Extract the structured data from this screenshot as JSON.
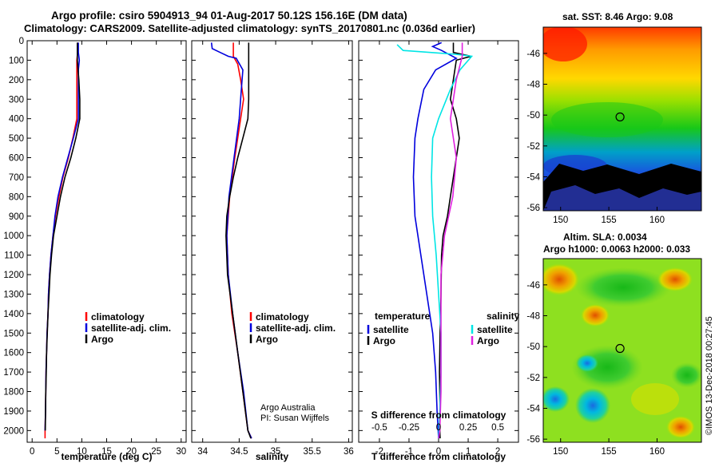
{
  "header": {
    "title_line1": "Argo profile: csiro 5904913_94 01-Aug-2017 50.12S 156.16E (DM data)",
    "title_line2": "Climatology: CARS2009. Satellite-adjusted climatology: synTS_20170801.nc (0.036d earlier)"
  },
  "map_top": {
    "title": "sat. SST: 8.46 Argo: 9.08",
    "lat_ticks": [
      "-46",
      "-48",
      "-50",
      "-52",
      "-54",
      "-56"
    ],
    "lon_ticks": [
      "150",
      "155",
      "160"
    ],
    "float_position": {
      "lon": 156.16,
      "lat": -50.12
    }
  },
  "map_bottom": {
    "title_line1": "Altim. SLA: 0.0034",
    "title_line2": "Argo h1000: 0.0063 h2000: 0.033",
    "lat_ticks": [
      "-46",
      "-48",
      "-50",
      "-52",
      "-54",
      "-56"
    ],
    "lon_ticks": [
      "150",
      "155",
      "160"
    ],
    "float_position": {
      "lon": 156.16,
      "lat": -50.12
    },
    "side_stamp": "©IMOS 13-Dec-2018 00:27:45"
  },
  "colors": {
    "climatology": "#ff0000",
    "satellite": "#0000dd",
    "argo": "#000000",
    "sat_salinity": "#00e5e5",
    "argo_salinity": "#e020e0"
  },
  "chart_data": [
    {
      "type": "line",
      "xlabel": "temperature (deg C)",
      "xlim": [
        -1,
        31
      ],
      "ylim": [
        2060,
        0
      ],
      "xticks": [
        "0",
        "5",
        "10",
        "15",
        "20",
        "25",
        "30"
      ],
      "yticks": [
        "0",
        "100",
        "200",
        "300",
        "400",
        "500",
        "600",
        "700",
        "800",
        "900",
        "1000",
        "1100",
        "1200",
        "1300",
        "1400",
        "1500",
        "1600",
        "1700",
        "1800",
        "1900",
        "2000"
      ],
      "legend": [
        "climatology",
        "satellite-adj. clim.",
        "Argo"
      ],
      "series": [
        {
          "name": "climatology",
          "color": "#ff0000",
          "points": [
            [
              9.2,
              10
            ],
            [
              9.2,
              50
            ],
            [
              9.0,
              100
            ],
            [
              9.0,
              200
            ],
            [
              9.0,
              400
            ],
            [
              8.2,
              500
            ],
            [
              7.3,
              600
            ],
            [
              6.2,
              700
            ],
            [
              5.4,
              800
            ],
            [
              4.7,
              900
            ],
            [
              4.2,
              1000
            ],
            [
              3.8,
              1100
            ],
            [
              3.5,
              1200
            ],
            [
              3.3,
              1300
            ],
            [
              3.2,
              1400
            ],
            [
              3.0,
              1500
            ],
            [
              2.9,
              1600
            ],
            [
              2.8,
              1700
            ],
            [
              2.75,
              1800
            ],
            [
              2.7,
              1900
            ],
            [
              2.6,
              2000
            ],
            [
              2.6,
              2040
            ]
          ]
        },
        {
          "name": "satellite-adj. clim.",
          "color": "#0000dd",
          "points": [
            [
              9.3,
              10
            ],
            [
              9.3,
              60
            ],
            [
              9.5,
              100
            ],
            [
              9.3,
              150
            ],
            [
              9.3,
              250
            ],
            [
              9.3,
              400
            ],
            [
              8.3,
              500
            ],
            [
              7.2,
              600
            ],
            [
              6.1,
              700
            ],
            [
              5.2,
              800
            ],
            [
              4.6,
              900
            ],
            [
              4.2,
              1000
            ],
            [
              3.8,
              1100
            ],
            [
              3.5,
              1200
            ],
            [
              3.3,
              1300
            ],
            [
              3.2,
              1400
            ],
            [
              3.0,
              1500
            ],
            [
              2.9,
              1600
            ],
            [
              2.8,
              1700
            ],
            [
              2.75,
              1800
            ],
            [
              2.7,
              1900
            ],
            [
              2.6,
              2000
            ]
          ]
        },
        {
          "name": "Argo",
          "color": "#000000",
          "points": [
            [
              9.1,
              10
            ],
            [
              9.1,
              100
            ],
            [
              9.4,
              200
            ],
            [
              9.6,
              300
            ],
            [
              9.6,
              400
            ],
            [
              8.8,
              500
            ],
            [
              7.8,
              600
            ],
            [
              6.6,
              700
            ],
            [
              5.7,
              800
            ],
            [
              5.0,
              900
            ],
            [
              4.3,
              1000
            ],
            [
              3.9,
              1100
            ],
            [
              3.6,
              1200
            ],
            [
              3.4,
              1300
            ],
            [
              3.2,
              1400
            ],
            [
              3.05,
              1500
            ],
            [
              2.9,
              1600
            ],
            [
              2.85,
              1700
            ],
            [
              2.75,
              1800
            ],
            [
              2.7,
              1900
            ],
            [
              2.65,
              2000
            ]
          ]
        }
      ]
    },
    {
      "type": "line",
      "xlabel": "salinity",
      "xlim": [
        33.85,
        36.05
      ],
      "ylim": [
        2060,
        0
      ],
      "xticks": [
        "34",
        "34.5",
        "35",
        "35.5",
        "36"
      ],
      "legend": [
        "climatology",
        "satellite-adj. clim.",
        "Argo"
      ],
      "credits": [
        "Argo Australia",
        "PI: Susan Wijffels"
      ],
      "series": [
        {
          "name": "climatology",
          "color": "#ff0000",
          "points": [
            [
              34.42,
              10
            ],
            [
              34.42,
              40
            ],
            [
              34.42,
              80
            ],
            [
              34.48,
              120
            ],
            [
              34.52,
              200
            ],
            [
              34.56,
              300
            ],
            [
              34.52,
              400
            ],
            [
              34.44,
              600
            ],
            [
              34.37,
              800
            ],
            [
              34.33,
              1000
            ],
            [
              34.35,
              1200
            ],
            [
              34.4,
              1400
            ],
            [
              34.48,
              1600
            ],
            [
              34.55,
              1800
            ],
            [
              34.62,
              2000
            ],
            [
              34.67,
              2040
            ]
          ]
        },
        {
          "name": "satellite-adj. clim.",
          "color": "#0000dd",
          "points": [
            [
              34.12,
              10
            ],
            [
              34.13,
              40
            ],
            [
              34.24,
              60
            ],
            [
              34.35,
              80
            ],
            [
              34.46,
              90
            ],
            [
              34.55,
              150
            ],
            [
              34.53,
              250
            ],
            [
              34.5,
              400
            ],
            [
              34.43,
              600
            ],
            [
              34.36,
              800
            ],
            [
              34.33,
              1000
            ],
            [
              34.35,
              1200
            ],
            [
              34.41,
              1400
            ],
            [
              34.48,
              1600
            ],
            [
              34.56,
              1800
            ],
            [
              34.62,
              2000
            ],
            [
              34.67,
              2040
            ]
          ]
        },
        {
          "name": "Argo",
          "color": "#000000",
          "points": [
            [
              34.63,
              10
            ],
            [
              34.63,
              100
            ],
            [
              34.63,
              300
            ],
            [
              34.62,
              400
            ],
            [
              34.55,
              500
            ],
            [
              34.48,
              600
            ],
            [
              34.42,
              700
            ],
            [
              34.37,
              800
            ],
            [
              34.33,
              900
            ],
            [
              34.32,
              1000
            ],
            [
              34.34,
              1200
            ],
            [
              34.41,
              1400
            ],
            [
              34.48,
              1600
            ],
            [
              34.55,
              1800
            ],
            [
              34.62,
              2000
            ],
            [
              34.66,
              2040
            ]
          ]
        }
      ]
    },
    {
      "type": "line",
      "xlabel": "T difference from climatology",
      "xlabel2": "S difference from climatology",
      "xlim": [
        -2.7,
        2.7
      ],
      "ylim": [
        2060,
        0
      ],
      "xticks": [
        "-2",
        "-1",
        "0",
        "1",
        "2"
      ],
      "xticks2": [
        "-0.5",
        "-0.25",
        "0",
        "0.25",
        "0.5"
      ],
      "legend_left": {
        "header": "temperature",
        "items": [
          "satellite",
          "Argo"
        ]
      },
      "legend_right": {
        "header": "salinity",
        "items": [
          "satellite",
          "Argo"
        ]
      },
      "series": [
        {
          "name": "satellite",
          "group": "temperature",
          "color": "#0000dd",
          "points": [
            [
              0.1,
              10
            ],
            [
              -0.2,
              30
            ],
            [
              0.1,
              50
            ],
            [
              0.6,
              90
            ],
            [
              -0.1,
              150
            ],
            [
              -0.5,
              250
            ],
            [
              -0.7,
              400
            ],
            [
              -0.8,
              500
            ],
            [
              -0.85,
              700
            ],
            [
              -0.8,
              900
            ],
            [
              -0.6,
              1100
            ],
            [
              -0.4,
              1300
            ],
            [
              -0.2,
              1500
            ],
            [
              -0.1,
              1700
            ],
            [
              -0.05,
              1900
            ],
            [
              0.0,
              2040
            ]
          ]
        },
        {
          "name": "Argo",
          "group": "temperature",
          "color": "#000000",
          "points": [
            [
              0.5,
              10
            ],
            [
              0.5,
              60
            ],
            [
              1.1,
              80
            ],
            [
              0.6,
              100
            ],
            [
              0.5,
              200
            ],
            [
              0.4,
              300
            ],
            [
              0.6,
              400
            ],
            [
              0.7,
              500
            ],
            [
              0.6,
              600
            ],
            [
              0.5,
              700
            ],
            [
              0.4,
              800
            ],
            [
              0.3,
              900
            ],
            [
              0.15,
              1000
            ],
            [
              0.1,
              1100
            ],
            [
              0.08,
              1300
            ],
            [
              0.05,
              1500
            ],
            [
              0.03,
              1700
            ],
            [
              0.05,
              1900
            ],
            [
              0.04,
              2000
            ],
            [
              0.05,
              2040
            ]
          ]
        },
        {
          "name": "satellite",
          "group": "salinity",
          "color": "#00e5e5",
          "points": [
            [
              -0.35,
              20
            ],
            [
              -0.3,
              50
            ],
            [
              0.15,
              70
            ],
            [
              0.28,
              80
            ],
            [
              0.18,
              150
            ],
            [
              0.1,
              250
            ],
            [
              0.0,
              400
            ],
            [
              -0.05,
              500
            ],
            [
              -0.06,
              700
            ],
            [
              -0.05,
              900
            ],
            [
              -0.02,
              1100
            ],
            [
              0.0,
              1300
            ],
            [
              0.02,
              1500
            ],
            [
              0.02,
              1700
            ],
            [
              0.01,
              1900
            ],
            [
              0.0,
              2040
            ]
          ]
        },
        {
          "name": "Argo",
          "group": "salinity",
          "color": "#e020e0",
          "points": [
            [
              0.2,
              10
            ],
            [
              0.2,
              50
            ],
            [
              0.2,
              80
            ],
            [
              0.15,
              200
            ],
            [
              0.1,
              400
            ],
            [
              0.15,
              600
            ],
            [
              0.12,
              800
            ],
            [
              0.05,
              1000
            ],
            [
              0.02,
              1200
            ],
            [
              0.02,
              1400
            ],
            [
              0.02,
              1600
            ],
            [
              0.02,
              1800
            ],
            [
              0.01,
              2000
            ],
            [
              0.0,
              2040
            ]
          ]
        }
      ]
    }
  ]
}
